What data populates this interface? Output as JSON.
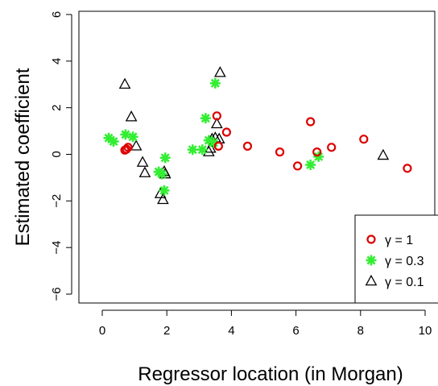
{
  "chart_data": {
    "type": "scatter",
    "title": "",
    "xlabel": "Regressor location (in Morgan)",
    "ylabel": "Estimated coefficient",
    "xlim": [
      -0.5,
      10.5
    ],
    "ylim": [
      -6.5,
      6.5
    ],
    "xticks": [
      "0",
      "2",
      "4",
      "6",
      "8",
      "10"
    ],
    "xtick_values": [
      0,
      2,
      4,
      6,
      8,
      10
    ],
    "yticks": [
      "−6",
      "−4",
      "−2",
      "0",
      "2",
      "4",
      "6"
    ],
    "ytick_values": [
      -6,
      -4,
      -2,
      0,
      2,
      4,
      6
    ],
    "grid": false,
    "legend_position": "bottom-right",
    "series": [
      {
        "name": "γ = 1",
        "marker": "circle",
        "color": "#dd0000",
        "points": [
          [
            0.7,
            0.18
          ],
          [
            0.75,
            0.22
          ],
          [
            0.8,
            0.3
          ],
          [
            3.55,
            1.65
          ],
          [
            3.6,
            0.35
          ],
          [
            3.85,
            0.95
          ],
          [
            4.5,
            0.35
          ],
          [
            5.5,
            0.1
          ],
          [
            6.05,
            -0.5
          ],
          [
            6.45,
            1.4
          ],
          [
            6.65,
            0.1
          ],
          [
            7.1,
            0.3
          ],
          [
            8.1,
            0.65
          ],
          [
            9.45,
            -0.6
          ]
        ]
      },
      {
        "name": "γ = 0.3",
        "marker": "asterisk",
        "color": "#33ee33",
        "points": [
          [
            0.2,
            0.7
          ],
          [
            0.35,
            0.55
          ],
          [
            0.72,
            0.85
          ],
          [
            0.95,
            0.75
          ],
          [
            1.75,
            -0.75
          ],
          [
            1.85,
            -0.85
          ],
          [
            1.92,
            -1.55
          ],
          [
            1.95,
            -0.15
          ],
          [
            2.8,
            0.2
          ],
          [
            3.1,
            0.2
          ],
          [
            3.2,
            1.55
          ],
          [
            3.3,
            0.6
          ],
          [
            3.45,
            0.5
          ],
          [
            3.5,
            3.05
          ],
          [
            6.45,
            -0.45
          ],
          [
            6.7,
            -0.1
          ]
        ]
      },
      {
        "name": "γ = 0.1",
        "marker": "triangle",
        "color": "#000000",
        "points": [
          [
            0.7,
            3.0
          ],
          [
            0.9,
            1.6
          ],
          [
            1.05,
            0.35
          ],
          [
            1.25,
            -0.35
          ],
          [
            1.32,
            -0.8
          ],
          [
            1.8,
            -1.7
          ],
          [
            1.88,
            -1.95
          ],
          [
            1.92,
            -0.75
          ],
          [
            1.95,
            -0.85
          ],
          [
            3.3,
            0.1
          ],
          [
            3.35,
            0.25
          ],
          [
            3.4,
            0.65
          ],
          [
            3.5,
            0.7
          ],
          [
            3.55,
            1.3
          ],
          [
            3.62,
            0.65
          ],
          [
            3.65,
            3.5
          ],
          [
            8.7,
            -0.05
          ]
        ]
      }
    ]
  }
}
